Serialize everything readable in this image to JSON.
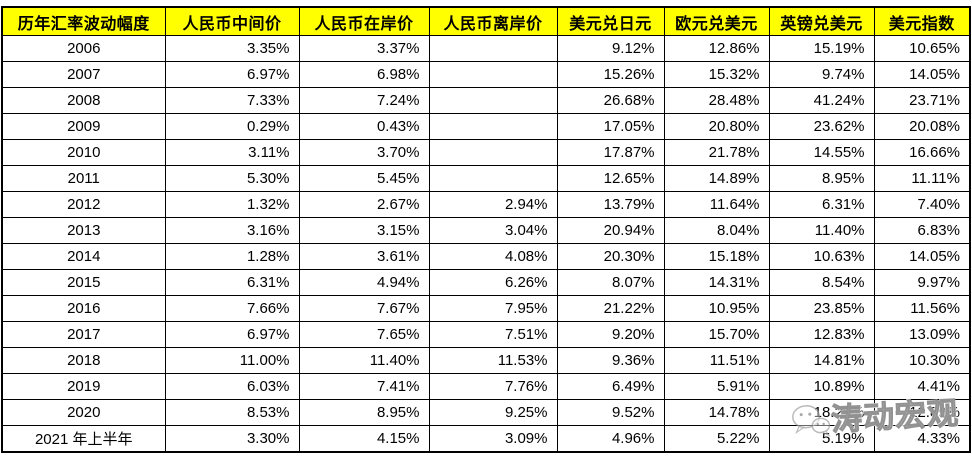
{
  "chart_data": {
    "type": "table",
    "title": "历年汇率波动幅度",
    "columns": [
      "历年汇率波动幅度",
      "人民币中间价",
      "人民币在岸价",
      "人民币离岸价",
      "美元兑日元",
      "欧元兑美元",
      "英镑兑美元",
      "美元指数"
    ],
    "rows": [
      [
        "2006",
        "3.35%",
        "3.37%",
        "",
        "9.12%",
        "12.86%",
        "15.19%",
        "10.65%"
      ],
      [
        "2007",
        "6.97%",
        "6.98%",
        "",
        "15.26%",
        "15.32%",
        "9.74%",
        "14.05%"
      ],
      [
        "2008",
        "7.33%",
        "7.24%",
        "",
        "26.68%",
        "28.48%",
        "41.24%",
        "23.71%"
      ],
      [
        "2009",
        "0.29%",
        "0.43%",
        "",
        "17.05%",
        "20.80%",
        "23.62%",
        "20.08%"
      ],
      [
        "2010",
        "3.11%",
        "3.70%",
        "",
        "17.87%",
        "21.78%",
        "14.55%",
        "16.66%"
      ],
      [
        "2011",
        "5.30%",
        "5.45%",
        "",
        "12.65%",
        "14.89%",
        "8.95%",
        "11.11%"
      ],
      [
        "2012",
        "1.32%",
        "2.67%",
        "2.94%",
        "13.79%",
        "11.64%",
        "6.31%",
        "7.40%"
      ],
      [
        "2013",
        "3.16%",
        "3.15%",
        "3.04%",
        "20.94%",
        "8.04%",
        "11.40%",
        "6.83%"
      ],
      [
        "2014",
        "1.28%",
        "3.61%",
        "4.08%",
        "20.30%",
        "15.18%",
        "10.63%",
        "14.05%"
      ],
      [
        "2015",
        "6.31%",
        "4.94%",
        "6.26%",
        "8.07%",
        "14.31%",
        "8.54%",
        "9.97%"
      ],
      [
        "2016",
        "7.66%",
        "7.67%",
        "7.95%",
        "21.22%",
        "10.95%",
        "23.85%",
        "11.56%"
      ],
      [
        "2017",
        "6.97%",
        "7.65%",
        "7.51%",
        "9.20%",
        "15.70%",
        "12.83%",
        "13.09%"
      ],
      [
        "2018",
        "11.00%",
        "11.40%",
        "11.53%",
        "9.36%",
        "11.51%",
        "14.81%",
        "10.30%"
      ],
      [
        "2019",
        "6.03%",
        "7.41%",
        "7.76%",
        "6.49%",
        "5.91%",
        "10.89%",
        "4.41%"
      ],
      [
        "2020",
        "8.53%",
        "8.95%",
        "9.25%",
        "9.52%",
        "14.78%",
        "18.25%",
        "12.89%"
      ],
      [
        "2021 年上半年",
        "3.30%",
        "4.15%",
        "3.09%",
        "4.96%",
        "5.22%",
        "5.19%",
        "4.33%"
      ]
    ],
    "layout": {
      "header_row": true,
      "grid": "all-borders",
      "value_alignment": "right",
      "year_alignment": "center"
    }
  },
  "watermark": {
    "label": "涛动宏观",
    "icon": "wechat-icon"
  },
  "colors": {
    "header_bg": "#FFFF00",
    "header_text": "#000000",
    "row_bg": "#FFFFFF",
    "cell_text": "#000000",
    "border": "#000000",
    "watermark_gray": "#ACACAC"
  }
}
